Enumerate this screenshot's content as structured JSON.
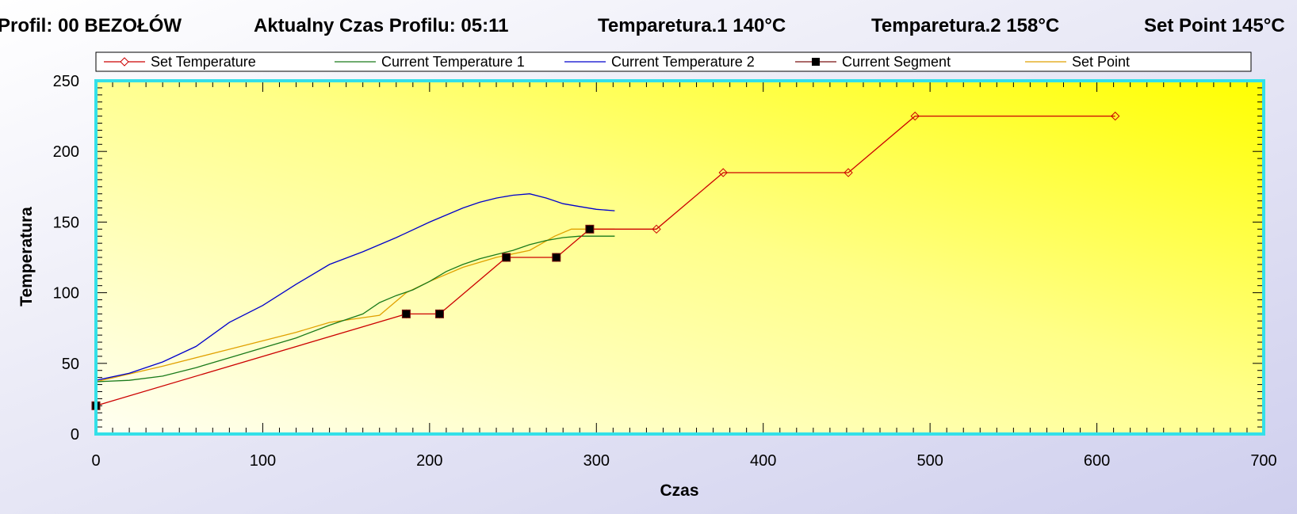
{
  "header": {
    "profile": "Profil: 00 BEZOŁÓW",
    "time": "Aktualny Czas Profilu: 05:11",
    "temp1": "Temparetura.1  140°C",
    "temp2": "Temparetura.2  158°C",
    "setpoint": "Set Point 145°C"
  },
  "colors": {
    "set_temperature": "#cc0000",
    "current_temperature_1": "#1a7a1a",
    "current_temperature_2": "#0000cc",
    "current_segment": "#7a1010",
    "set_point": "#e0a000",
    "plot_border": "#33e0e8",
    "plot_gradient_light": "#fffff2",
    "plot_gradient_dark": "#ffff00"
  },
  "chart_data": {
    "type": "line",
    "title": "",
    "xlabel": "Czas",
    "ylabel": "Temperatura",
    "xlim": [
      0,
      700
    ],
    "ylim": [
      0,
      250
    ],
    "x_ticks": [
      0,
      100,
      200,
      300,
      400,
      500,
      600,
      700
    ],
    "y_ticks": [
      0,
      50,
      100,
      150,
      200,
      250
    ],
    "legend_position": "top",
    "series": [
      {
        "name": "Set Temperature",
        "marker": "diamond",
        "points": [
          [
            0,
            20
          ],
          [
            186,
            85
          ],
          [
            206,
            85
          ],
          [
            246,
            125
          ],
          [
            276,
            125
          ],
          [
            296,
            145
          ],
          [
            336,
            145
          ],
          [
            376,
            185
          ],
          [
            451,
            185
          ],
          [
            491,
            225
          ],
          [
            611,
            225
          ]
        ]
      },
      {
        "name": "Current Temperature 1",
        "points": [
          [
            0,
            37
          ],
          [
            20,
            38
          ],
          [
            40,
            41
          ],
          [
            60,
            47
          ],
          [
            80,
            54
          ],
          [
            100,
            61
          ],
          [
            120,
            68
          ],
          [
            140,
            77
          ],
          [
            160,
            85
          ],
          [
            170,
            93
          ],
          [
            180,
            98
          ],
          [
            190,
            102
          ],
          [
            200,
            108
          ],
          [
            210,
            115
          ],
          [
            220,
            120
          ],
          [
            230,
            124
          ],
          [
            240,
            127
          ],
          [
            250,
            130
          ],
          [
            260,
            134
          ],
          [
            270,
            137
          ],
          [
            280,
            139
          ],
          [
            290,
            140
          ],
          [
            300,
            140
          ],
          [
            311,
            140
          ]
        ]
      },
      {
        "name": "Current Temperature 2",
        "points": [
          [
            0,
            38
          ],
          [
            20,
            43
          ],
          [
            40,
            51
          ],
          [
            60,
            62
          ],
          [
            80,
            79
          ],
          [
            100,
            91
          ],
          [
            120,
            106
          ],
          [
            140,
            120
          ],
          [
            160,
            129
          ],
          [
            180,
            139
          ],
          [
            200,
            150
          ],
          [
            210,
            155
          ],
          [
            220,
            160
          ],
          [
            230,
            164
          ],
          [
            240,
            167
          ],
          [
            250,
            169
          ],
          [
            260,
            170
          ],
          [
            270,
            167
          ],
          [
            280,
            163
          ],
          [
            290,
            161
          ],
          [
            300,
            159
          ],
          [
            311,
            158
          ]
        ]
      },
      {
        "name": "Current Segment",
        "marker": "square",
        "points": [
          [
            0,
            20
          ],
          [
            186,
            85
          ],
          [
            206,
            85
          ],
          [
            246,
            125
          ],
          [
            276,
            125
          ],
          [
            296,
            145
          ]
        ]
      },
      {
        "name": "Set Point",
        "points": [
          [
            0,
            37
          ],
          [
            40,
            48
          ],
          [
            80,
            60
          ],
          [
            120,
            72
          ],
          [
            140,
            79
          ],
          [
            170,
            84
          ],
          [
            186,
            100
          ],
          [
            200,
            108
          ],
          [
            220,
            118
          ],
          [
            240,
            125
          ],
          [
            260,
            130
          ],
          [
            275,
            140
          ],
          [
            285,
            145
          ],
          [
            296,
            145
          ],
          [
            311,
            145
          ]
        ]
      }
    ]
  }
}
